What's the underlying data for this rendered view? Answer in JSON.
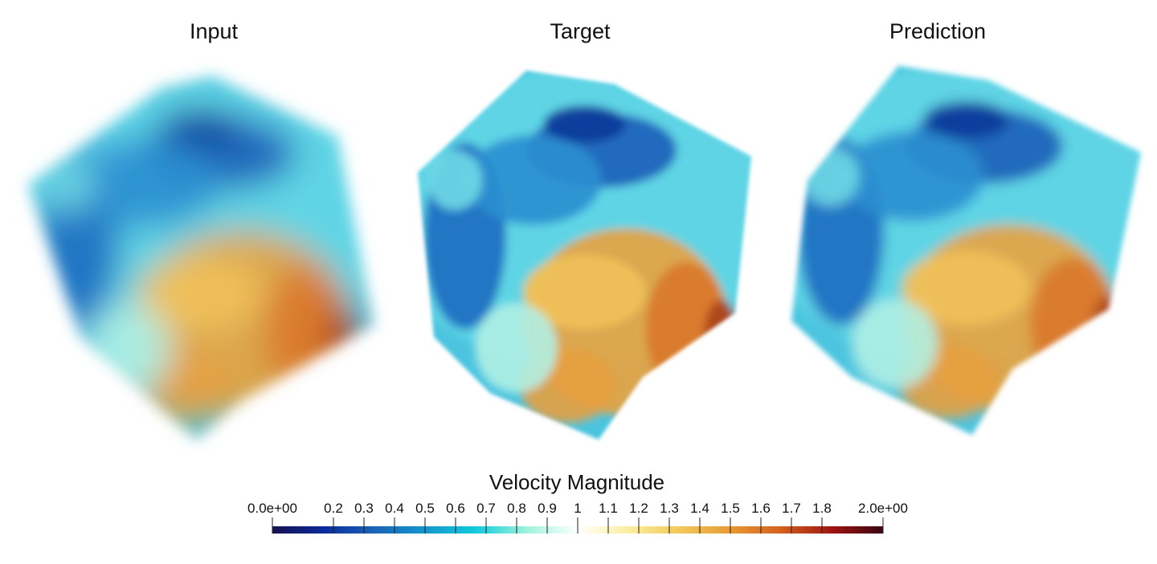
{
  "panels": [
    {
      "title": "Input",
      "blur": 9
    },
    {
      "title": "Target",
      "blur": 2.5
    },
    {
      "title": "Prediction",
      "blur": 3.5
    }
  ],
  "colorbar": {
    "title": "Velocity Magnitude",
    "range": [
      0,
      2
    ],
    "colormap": [
      "#16124f",
      "#0b2a9a",
      "#1a63b8",
      "#1496cc",
      "#12cbdc",
      "#9ff2dc",
      "#ffffff",
      "#fbeea0",
      "#f2c85a",
      "#e89a35",
      "#d4601e",
      "#9e1410",
      "#3a0612"
    ],
    "tick_values": [
      0,
      0.2,
      0.3,
      0.4,
      0.5,
      0.6,
      0.7,
      0.8,
      0.9,
      1,
      1.1,
      1.2,
      1.3,
      1.4,
      1.5,
      1.6,
      1.7,
      1.8,
      2
    ],
    "tick_labels": [
      "0.0e+00",
      "0.2",
      "0.3",
      "0.4",
      "0.5",
      "0.6",
      "0.7",
      "0.8",
      "0.9",
      "1",
      "1.1",
      "1.2",
      "1.3",
      "1.4",
      "1.5",
      "1.6",
      "1.7",
      "1.8",
      "2.0e+00"
    ]
  }
}
